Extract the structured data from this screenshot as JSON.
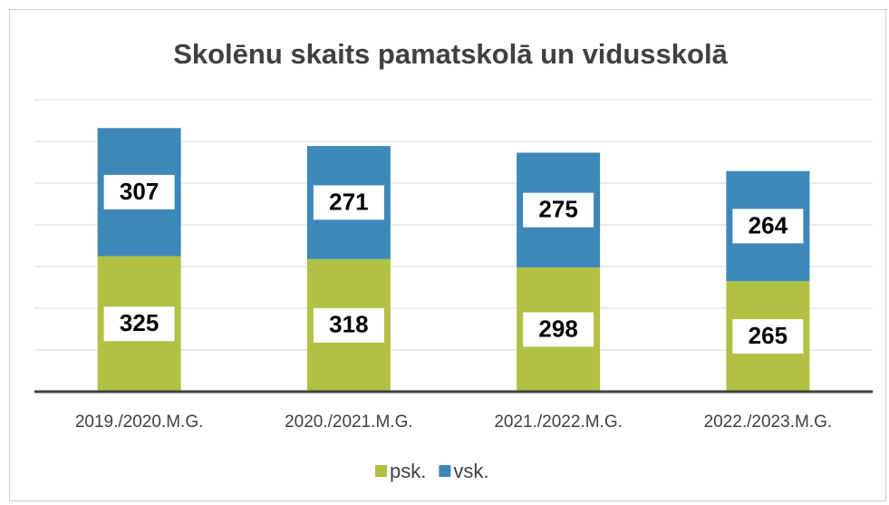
{
  "chart_data": {
    "type": "stacked_bar",
    "title": "Skolēnu skaits pamatskolā un vidusskolā",
    "categories": [
      "2019./2020.M.G.",
      "2020./2021.M.G.",
      "2021./2022.M.G.",
      "2022./2023.M.G."
    ],
    "series": [
      {
        "name": "psk.",
        "color": "#b0c143",
        "values": [
          325,
          318,
          298,
          265
        ]
      },
      {
        "name": "vsk.",
        "color": "#3d88b8",
        "values": [
          307,
          271,
          275,
          264
        ]
      }
    ],
    "ylim": [
      0,
      700
    ],
    "yticks": [
      0,
      100,
      200,
      300,
      400,
      500,
      600,
      700
    ],
    "grid": true,
    "legend": "bottom",
    "data_labels": true
  }
}
